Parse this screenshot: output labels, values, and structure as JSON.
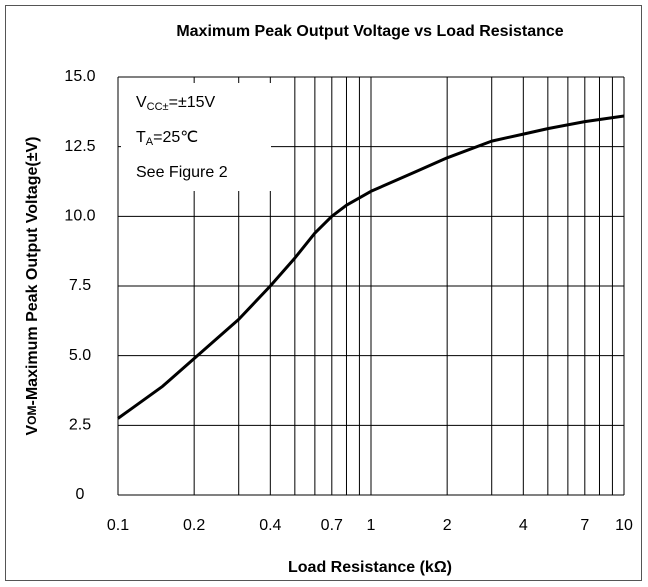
{
  "chart_data": {
    "type": "line",
    "title": "Maximum Peak Output Voltage vs Load Resistance",
    "xlabel": "Load Resistance (kΩ)",
    "ylabel_parts": [
      "V",
      "OM",
      "-Maximum Peak Output Voltage(±V)"
    ],
    "annotation_lines": [
      [
        "V",
        "CC±",
        "=±15V"
      ],
      [
        "T",
        "A",
        "=25℃"
      ],
      [
        "See Figure 2"
      ]
    ],
    "xscale": "log",
    "xlim": [
      0.1,
      10
    ],
    "ylim": [
      0,
      15
    ],
    "xticks": [
      0.1,
      0.2,
      0.4,
      0.7,
      1,
      2,
      4,
      7,
      10
    ],
    "xminor_ticks": [
      0.3,
      0.5,
      0.6,
      0.8,
      0.9,
      3,
      5,
      6,
      8,
      9
    ],
    "yticks": [
      0,
      2.5,
      {
        "value": 5,
        "label": "5.0"
      },
      7.5,
      {
        "value": 10,
        "label": "10.0"
      },
      12.5,
      {
        "value": 15,
        "label": "15.0"
      }
    ],
    "grid": true,
    "series": [
      {
        "name": "VOM",
        "color": "#000000",
        "x": [
          0.1,
          0.15,
          0.2,
          0.3,
          0.4,
          0.5,
          0.6,
          0.7,
          0.8,
          1,
          1.5,
          2,
          3,
          4,
          5,
          7,
          10
        ],
        "values": [
          2.75,
          3.9,
          4.9,
          6.3,
          7.5,
          8.5,
          9.4,
          10.0,
          10.4,
          10.9,
          11.6,
          12.1,
          12.7,
          12.95,
          13.15,
          13.4,
          13.6
        ]
      }
    ]
  }
}
